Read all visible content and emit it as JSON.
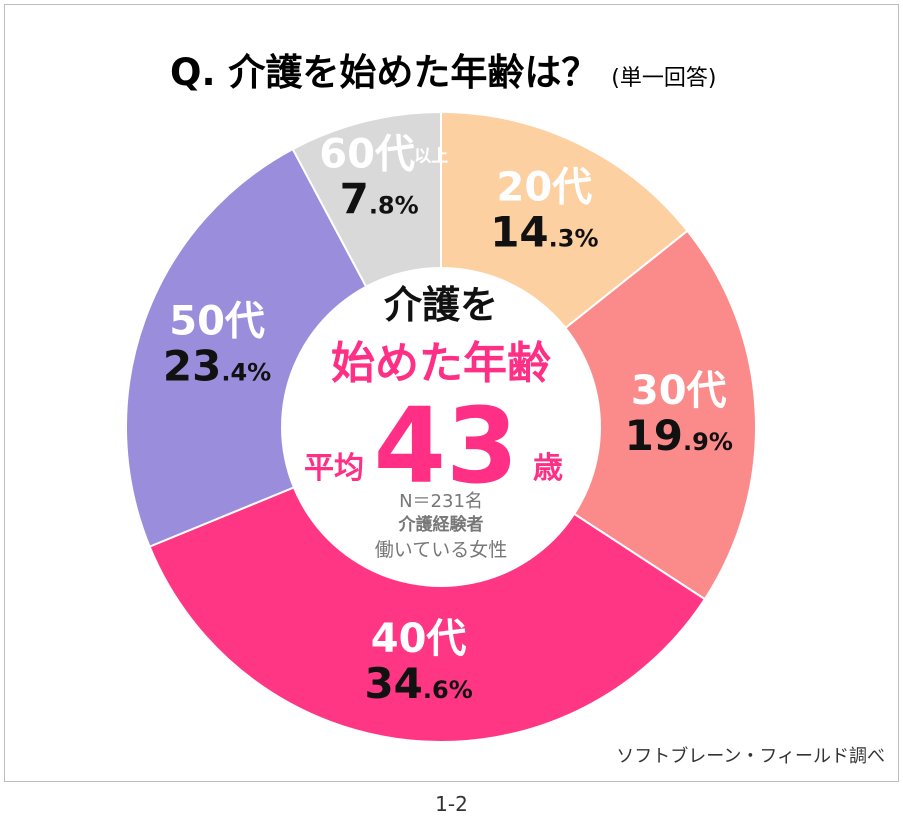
{
  "header": {
    "title": "Q.  介護を始めた年齢は？",
    "title_sub": "(単一回答)"
  },
  "chart_data": {
    "type": "pie",
    "categories": [
      "20代",
      "30代",
      "40代",
      "50代",
      "60代以上"
    ],
    "values": [
      14.3,
      19.9,
      34.6,
      23.4,
      7.8
    ],
    "colors": [
      "#fdd0a2",
      "#fb8a8a",
      "#ff3683",
      "#9a8ddc",
      "#d9d9d9"
    ],
    "labels": [
      {
        "age": "20代",
        "int": "14",
        "dec": ".3%"
      },
      {
        "age": "30代",
        "int": "19",
        "dec": ".9%"
      },
      {
        "age": "40代",
        "int": "34",
        "dec": ".6%"
      },
      {
        "age": "50代",
        "int": "23",
        "dec": ".4%"
      },
      {
        "age": "60代",
        "age_sub": "以上",
        "int": "7",
        "dec": ".8%"
      }
    ]
  },
  "center": {
    "line1": "介護を",
    "line2": "始めた年齢",
    "avg_label": "平均",
    "avg_value": "43",
    "avg_unit": "歳",
    "sample": "N＝231名",
    "group1": "介護経験者",
    "group2": "働いている女性"
  },
  "footer": {
    "source": "ソフトブレーン・フィールド調べ",
    "page": "1-2"
  }
}
